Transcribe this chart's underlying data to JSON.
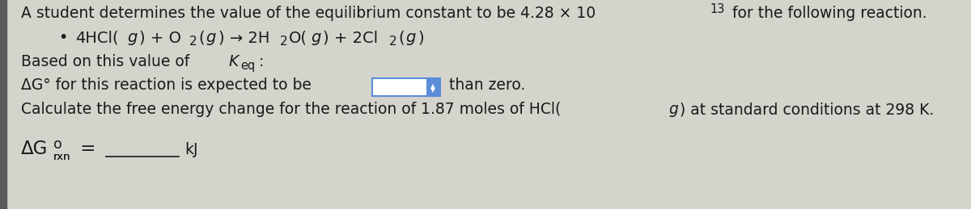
{
  "bg_color": "#d4d3cc",
  "text_color": "#1a1a1a",
  "left_bar_color": "#5a5a5a",
  "font_size_main": 13.5,
  "font_size_eq": 14,
  "dropdown_fill": "#ffffff",
  "dropdown_edge": "#5b8dd9",
  "dropdown_btn": "#5b8dd9",
  "line1a": "A student determines the value of the equilibrium constant to be 4.28 × 10",
  "line1_sup": "13",
  "line1b": " for the following reaction.",
  "eq_indent": 100,
  "line3a": "Based on this value of ",
  "line3b": "K",
  "line3c": "eq",
  "line3d": ":",
  "line4a": "ΔG° for this reaction is expected to be",
  "line4b": "than zero.",
  "line5a": "Calculate the free energy change for the reaction of 1.87 moles of HCl(",
  "line5b": "g",
  "line5c": ") at standard conditions at 298 K.",
  "line6a": "ΔG",
  "line6_sup": "o",
  "line6_sub": "rxn",
  "line6b": " =",
  "line6c": "kJ"
}
